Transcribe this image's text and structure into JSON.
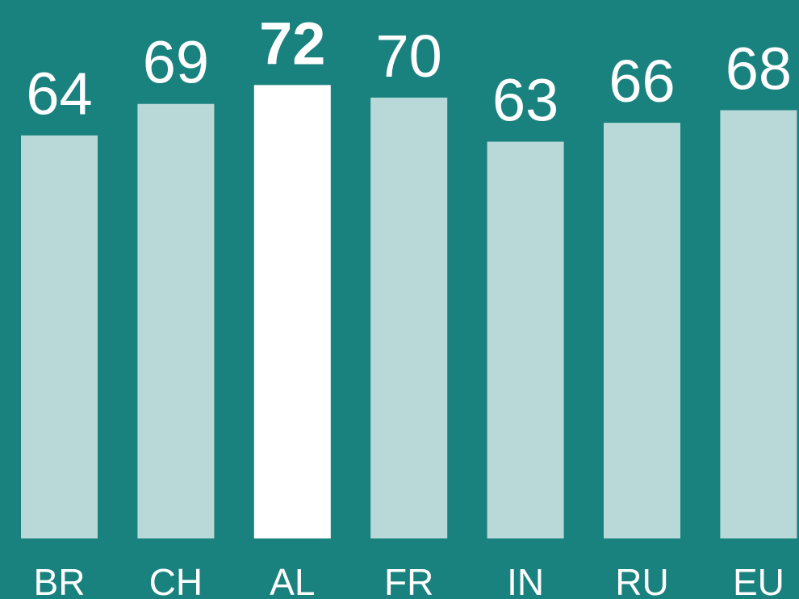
{
  "chart_data": {
    "type": "bar",
    "categories": [
      "BR",
      "CH",
      "AL",
      "FR",
      "IN",
      "RU",
      "EU"
    ],
    "values": [
      64,
      69,
      72,
      70,
      63,
      66,
      68
    ],
    "color": "#b9d9d8",
    "highlight": "AL",
    "highlight_color": "#ffffff",
    "background": "#1a827e",
    "ylim": [
      0,
      85.5
    ]
  }
}
